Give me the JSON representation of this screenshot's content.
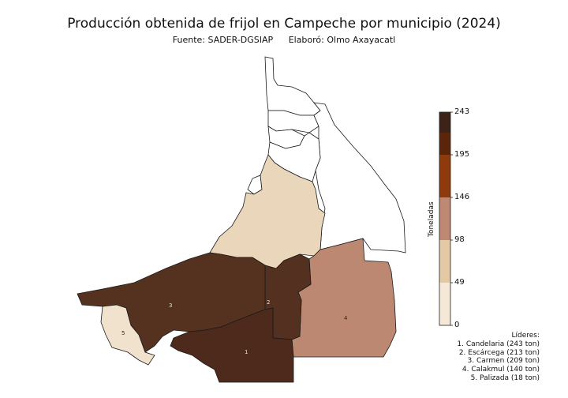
{
  "title": "Producción obtenida de frijol en Campeche por municipio (2024)",
  "source": "Fuente: SADER-DGSIAP",
  "author": "Elaboró: Olmo Axayacatl",
  "colorbar": {
    "label": "Toneladas",
    "ticks": [
      "243",
      "195",
      "146",
      "98",
      "49",
      "0"
    ],
    "range": [
      0,
      243
    ],
    "colors": [
      "#f5e8d6",
      "#e4caa4",
      "#bf8873",
      "#8e3a0c",
      "#5a2508",
      "#3d2218"
    ]
  },
  "leaders": {
    "heading": "Líderes:",
    "items": [
      "1. Candelaria (243 ton)",
      "2. Escárcega (213 ton)",
      "3. Carmen (209 ton)",
      "4. Calakmul (140 ton)",
      "5. Palizada (18 ton)"
    ]
  },
  "map_labels": [
    "1",
    "2",
    "3",
    "4",
    "5"
  ],
  "colors": {
    "candelaria": "#4e2a1c",
    "escarcega": "#53301f",
    "carmen": "#55321f",
    "calakmul": "#bd8872",
    "palizada": "#f0e2cd",
    "champoton": "#ead7bb",
    "no_data": "#ffffff",
    "border": "#1a1a1a"
  }
}
